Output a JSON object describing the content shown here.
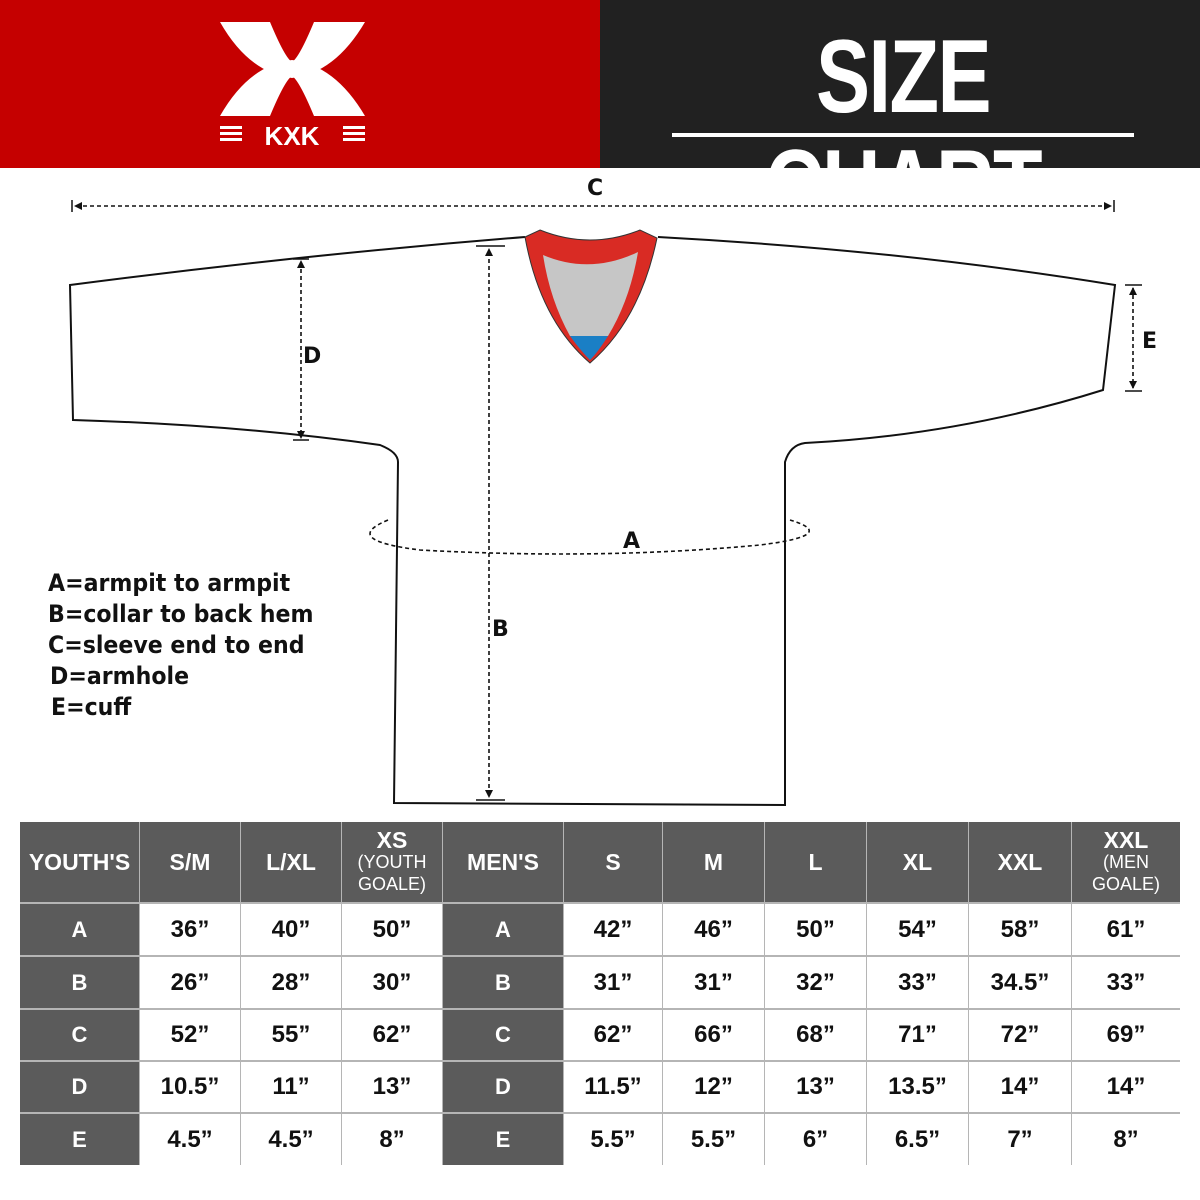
{
  "brand": {
    "logo_text": "KXK",
    "bg_color": "#c50000"
  },
  "header": {
    "title": "SIZE CHART",
    "bg_color": "#212121"
  },
  "diagram": {
    "labels": {
      "a": "A",
      "b": "B",
      "c": "C",
      "d": "D",
      "e": "E"
    },
    "collar_colors": {
      "trim": "#d92b24",
      "inner": "#c6c6c6",
      "tag": "#1a7fc5"
    }
  },
  "legend": [
    "A=armpit to armpit",
    "B=collar to back hem",
    "C=sleeve end to end",
    "D=armhole",
    "E=cuff"
  ],
  "table": {
    "youth_header": "YOUTH'S",
    "youth_sizes": [
      {
        "main": "S/M"
      },
      {
        "main": "L/XL"
      },
      {
        "main": "XS",
        "sub": "(YOUTH GOALE)"
      }
    ],
    "men_header": "MEN'S",
    "men_sizes": [
      {
        "main": "S"
      },
      {
        "main": "M"
      },
      {
        "main": "L"
      },
      {
        "main": "XL"
      },
      {
        "main": "XXL"
      },
      {
        "main": "XXL",
        "sub": "(MEN GOALE)"
      }
    ],
    "rows": [
      {
        "label": "A",
        "youth": [
          "36”",
          "40”",
          "50”"
        ],
        "men": [
          "42”",
          "46”",
          "50”",
          "54”",
          "58”",
          "61”"
        ]
      },
      {
        "label": "B",
        "youth": [
          "26”",
          "28”",
          "30”"
        ],
        "men": [
          "31”",
          "31”",
          "32”",
          "33”",
          "34.5”",
          "33”"
        ]
      },
      {
        "label": "C",
        "youth": [
          "52”",
          "55”",
          "62”"
        ],
        "men": [
          "62”",
          "66”",
          "68”",
          "71”",
          "72”",
          "69”"
        ]
      },
      {
        "label": "D",
        "youth": [
          "10.5”",
          "11”",
          "13”"
        ],
        "men": [
          "11.5”",
          "12”",
          "13”",
          "13.5”",
          "14”",
          "14”"
        ]
      },
      {
        "label": "E",
        "youth": [
          "4.5”",
          "4.5”",
          "8”"
        ],
        "men": [
          "5.5”",
          "5.5”",
          "6”",
          "6.5”",
          "7”",
          "8”"
        ]
      }
    ]
  }
}
